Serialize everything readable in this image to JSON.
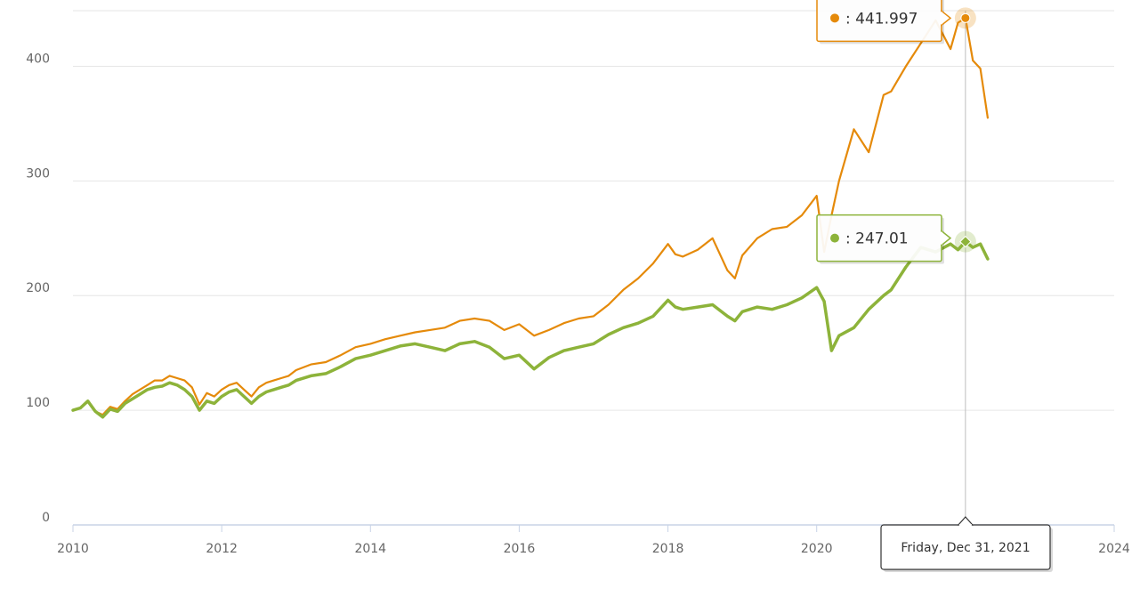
{
  "chart_data": {
    "type": "line",
    "title": "",
    "xlabel": "",
    "ylabel": "",
    "xlim": [
      2010,
      2024
    ],
    "ylim": [
      0,
      450
    ],
    "x_ticks": [
      "2010",
      "2012",
      "2014",
      "2016",
      "2018",
      "2020",
      "2022",
      "2024"
    ],
    "y_ticks": [
      "0",
      "100",
      "200",
      "300",
      "400"
    ],
    "grid": "horizontal",
    "series": [
      {
        "color": "#e58a0a",
        "x": [
          2010.0,
          2010.1,
          2010.2,
          2010.3,
          2010.4,
          2010.5,
          2010.6,
          2010.7,
          2010.8,
          2010.9,
          2011.0,
          2011.1,
          2011.2,
          2011.3,
          2011.4,
          2011.5,
          2011.6,
          2011.7,
          2011.8,
          2011.9,
          2012.0,
          2012.1,
          2012.2,
          2012.3,
          2012.4,
          2012.5,
          2012.6,
          2012.7,
          2012.8,
          2012.9,
          2013.0,
          2013.2,
          2013.4,
          2013.6,
          2013.8,
          2014.0,
          2014.2,
          2014.4,
          2014.6,
          2014.8,
          2015.0,
          2015.2,
          2015.4,
          2015.6,
          2015.8,
          2016.0,
          2016.2,
          2016.4,
          2016.6,
          2016.8,
          2017.0,
          2017.2,
          2017.4,
          2017.6,
          2017.8,
          2018.0,
          2018.1,
          2018.2,
          2018.4,
          2018.6,
          2018.8,
          2018.9,
          2019.0,
          2019.2,
          2019.4,
          2019.6,
          2019.8,
          2020.0,
          2020.1,
          2020.2,
          2020.3,
          2020.5,
          2020.7,
          2020.9,
          2021.0,
          2021.2,
          2021.4,
          2021.6,
          2021.8,
          2021.9,
          2022.0,
          2022.1,
          2022.2,
          2022.3
        ],
        "values": [
          100,
          102,
          108,
          99,
          96,
          103,
          101,
          108,
          114,
          118,
          122,
          126,
          126,
          130,
          128,
          126,
          120,
          105,
          115,
          112,
          118,
          122,
          124,
          118,
          112,
          120,
          124,
          126,
          128,
          130,
          135,
          140,
          142,
          148,
          155,
          158,
          162,
          165,
          168,
          170,
          172,
          178,
          180,
          178,
          170,
          175,
          165,
          170,
          176,
          180,
          182,
          192,
          205,
          215,
          228,
          245,
          236,
          234,
          240,
          250,
          222,
          215,
          235,
          250,
          258,
          260,
          270,
          287,
          238,
          270,
          300,
          345,
          325,
          375,
          378,
          400,
          420,
          440,
          415,
          438,
          441.997,
          405,
          398,
          355
        ]
      },
      {
        "color": "#8db33a",
        "x": [
          2010.0,
          2010.1,
          2010.2,
          2010.3,
          2010.4,
          2010.5,
          2010.6,
          2010.7,
          2010.8,
          2010.9,
          2011.0,
          2011.1,
          2011.2,
          2011.3,
          2011.4,
          2011.5,
          2011.6,
          2011.7,
          2011.8,
          2011.9,
          2012.0,
          2012.1,
          2012.2,
          2012.3,
          2012.4,
          2012.5,
          2012.6,
          2012.7,
          2012.8,
          2012.9,
          2013.0,
          2013.2,
          2013.4,
          2013.6,
          2013.8,
          2014.0,
          2014.2,
          2014.4,
          2014.6,
          2014.8,
          2015.0,
          2015.2,
          2015.4,
          2015.6,
          2015.8,
          2016.0,
          2016.2,
          2016.4,
          2016.6,
          2016.8,
          2017.0,
          2017.2,
          2017.4,
          2017.6,
          2017.8,
          2018.0,
          2018.1,
          2018.2,
          2018.4,
          2018.6,
          2018.8,
          2018.9,
          2019.0,
          2019.2,
          2019.4,
          2019.6,
          2019.8,
          2020.0,
          2020.1,
          2020.2,
          2020.3,
          2020.5,
          2020.7,
          2020.9,
          2021.0,
          2021.2,
          2021.4,
          2021.6,
          2021.8,
          2021.9,
          2022.0,
          2022.1,
          2022.2,
          2022.3
        ],
        "values": [
          100,
          102,
          108,
          99,
          94,
          101,
          99,
          106,
          110,
          114,
          118,
          120,
          121,
          124,
          122,
          118,
          112,
          100,
          108,
          106,
          112,
          116,
          118,
          112,
          106,
          112,
          116,
          118,
          120,
          122,
          126,
          130,
          132,
          138,
          145,
          148,
          152,
          156,
          158,
          155,
          152,
          158,
          160,
          155,
          145,
          148,
          136,
          146,
          152,
          155,
          158,
          166,
          172,
          176,
          182,
          196,
          190,
          188,
          190,
          192,
          182,
          178,
          186,
          190,
          188,
          192,
          198,
          207,
          195,
          152,
          165,
          172,
          188,
          200,
          205,
          225,
          242,
          238,
          245,
          240,
          247.01,
          242,
          245,
          232
        ]
      }
    ],
    "crosshair_date": "Friday, Dec 31, 2021",
    "tooltip_values": [
      "441.997",
      "247.01"
    ]
  }
}
